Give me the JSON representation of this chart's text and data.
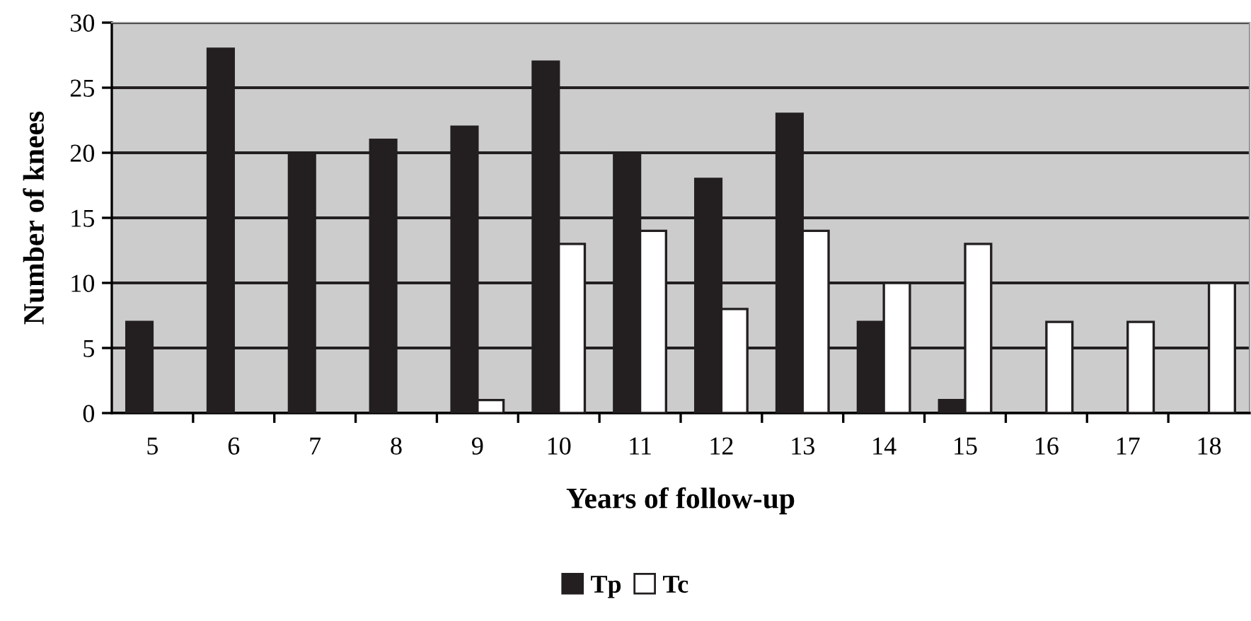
{
  "chart_data": {
    "type": "bar",
    "xlabel": "Years of follow-up",
    "ylabel": "Number of knees",
    "categories": [
      "5",
      "6",
      "7",
      "8",
      "9",
      "10",
      "11",
      "12",
      "13",
      "14",
      "15",
      "16",
      "17",
      "18"
    ],
    "series": [
      {
        "name": "Tp",
        "color": "#231f20",
        "values": [
          7,
          28,
          20,
          21,
          22,
          27,
          20,
          18,
          23,
          7,
          1,
          null,
          null,
          null
        ]
      },
      {
        "name": "Tc",
        "color": "#ffffff",
        "values": [
          null,
          null,
          null,
          null,
          1,
          13,
          14,
          8,
          14,
          10,
          13,
          7,
          7,
          10
        ]
      }
    ],
    "ylim": [
      0,
      30
    ],
    "yticks": [
      0,
      5,
      10,
      15,
      20,
      25,
      30
    ],
    "grid": "y",
    "legend": "bottom"
  }
}
